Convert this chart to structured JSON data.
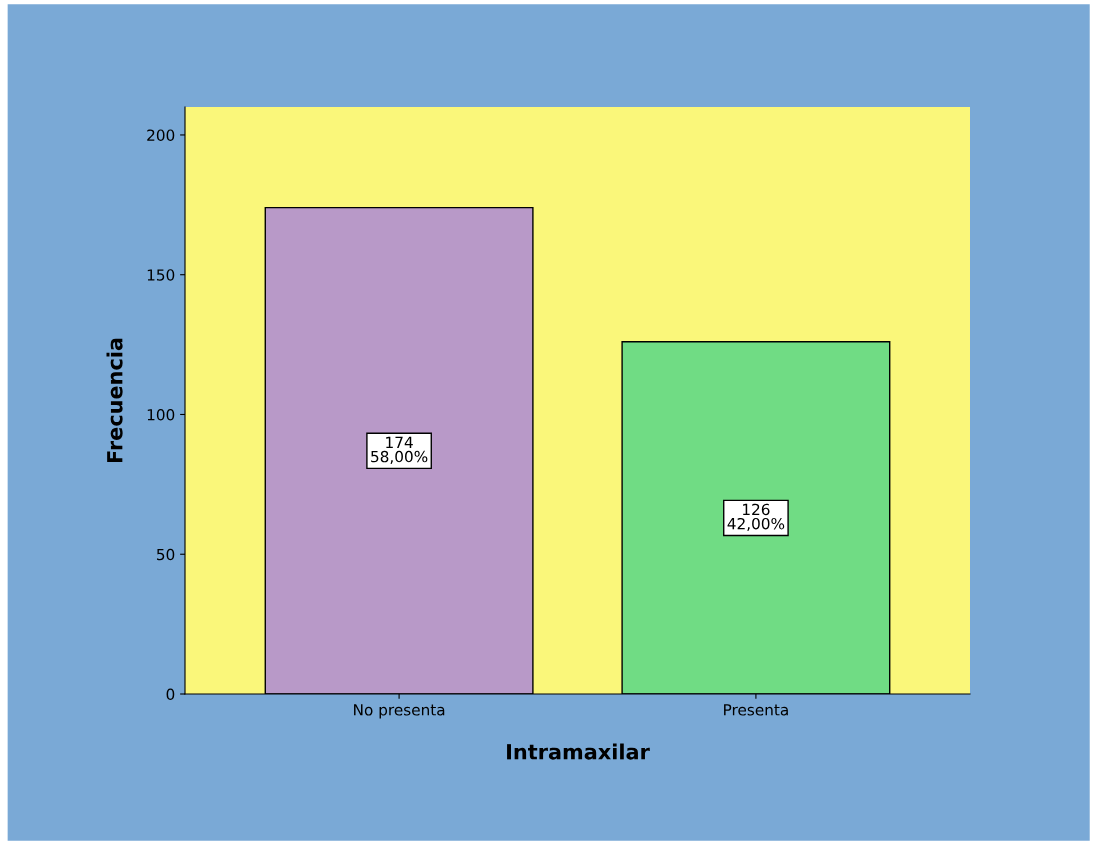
{
  "chart_data": {
    "type": "bar",
    "xlabel": "Intramaxilar",
    "ylabel": "Frecuencia",
    "categories": [
      "No presenta",
      "Presenta"
    ],
    "values": [
      174,
      126
    ],
    "colors": [
      "#b899c8",
      "#70dc84"
    ],
    "value_labels": [
      "174\n58,00%",
      "126\n42,00%"
    ],
    "ylim": [
      0,
      210
    ],
    "yticks": [
      0,
      50,
      100,
      150,
      200
    ],
    "grid": false
  }
}
